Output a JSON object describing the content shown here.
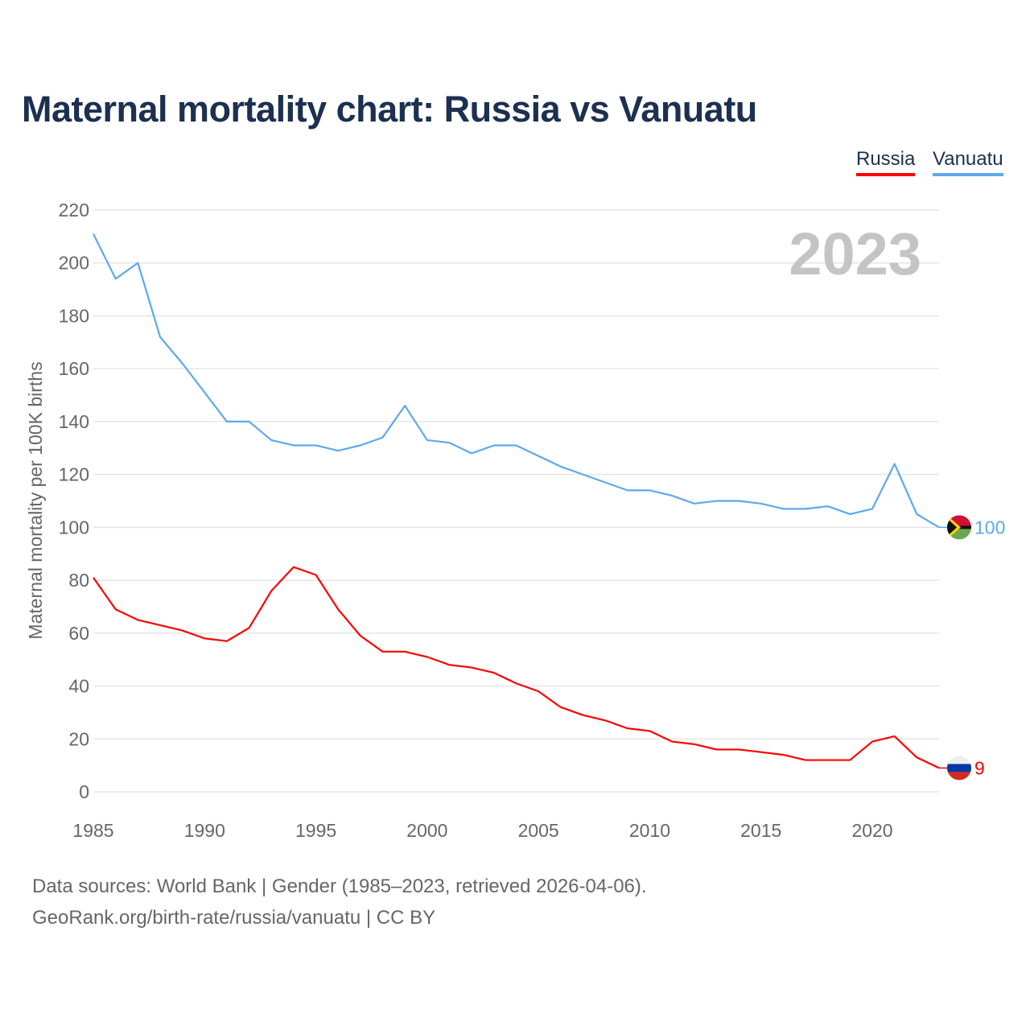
{
  "chart_data": {
    "type": "line",
    "title": "Maternal mortality chart: Russia vs Vanuatu",
    "xlabel": "",
    "ylabel": "Maternal mortality per 100K births",
    "year_label": "2023",
    "xlim": [
      1985,
      2023
    ],
    "ylim": [
      0,
      220
    ],
    "yticks": [
      0,
      20,
      40,
      60,
      80,
      100,
      120,
      140,
      160,
      180,
      200,
      220
    ],
    "xticks": [
      1985,
      1990,
      1995,
      2000,
      2005,
      2010,
      2015,
      2020
    ],
    "grid": true,
    "legend_position": "top-right",
    "x": [
      1985,
      1986,
      1987,
      1988,
      1989,
      1990,
      1991,
      1992,
      1993,
      1994,
      1995,
      1996,
      1997,
      1998,
      1999,
      2000,
      2001,
      2002,
      2003,
      2004,
      2005,
      2006,
      2007,
      2008,
      2009,
      2010,
      2011,
      2012,
      2013,
      2014,
      2015,
      2016,
      2017,
      2018,
      2019,
      2020,
      2021,
      2022,
      2023
    ],
    "series": [
      {
        "name": "Russia",
        "color": "#ff0000",
        "end_label": "9",
        "values": [
          81,
          69,
          65,
          63,
          61,
          58,
          57,
          62,
          76,
          85,
          82,
          69,
          59,
          53,
          53,
          51,
          48,
          47,
          45,
          41,
          38,
          32,
          29,
          27,
          24,
          23,
          19,
          18,
          16,
          16,
          15,
          14,
          12,
          12,
          12,
          19,
          21,
          13,
          9
        ]
      },
      {
        "name": "Vanuatu",
        "color": "#5ea8ec",
        "end_label": "100",
        "values": [
          211,
          194,
          200,
          172,
          162,
          151,
          140,
          140,
          133,
          131,
          131,
          129,
          131,
          134,
          146,
          133,
          132,
          128,
          131,
          131,
          127,
          123,
          120,
          117,
          114,
          114,
          112,
          109,
          110,
          110,
          109,
          107,
          107,
          108,
          105,
          107,
          124,
          105,
          100
        ]
      }
    ]
  },
  "footer": {
    "sources": "Data sources: World Bank | Gender (1985–2023, retrieved 2026-04-06).",
    "credit": "GeoRank.org/birth-rate/russia/vanuatu | CC BY"
  }
}
